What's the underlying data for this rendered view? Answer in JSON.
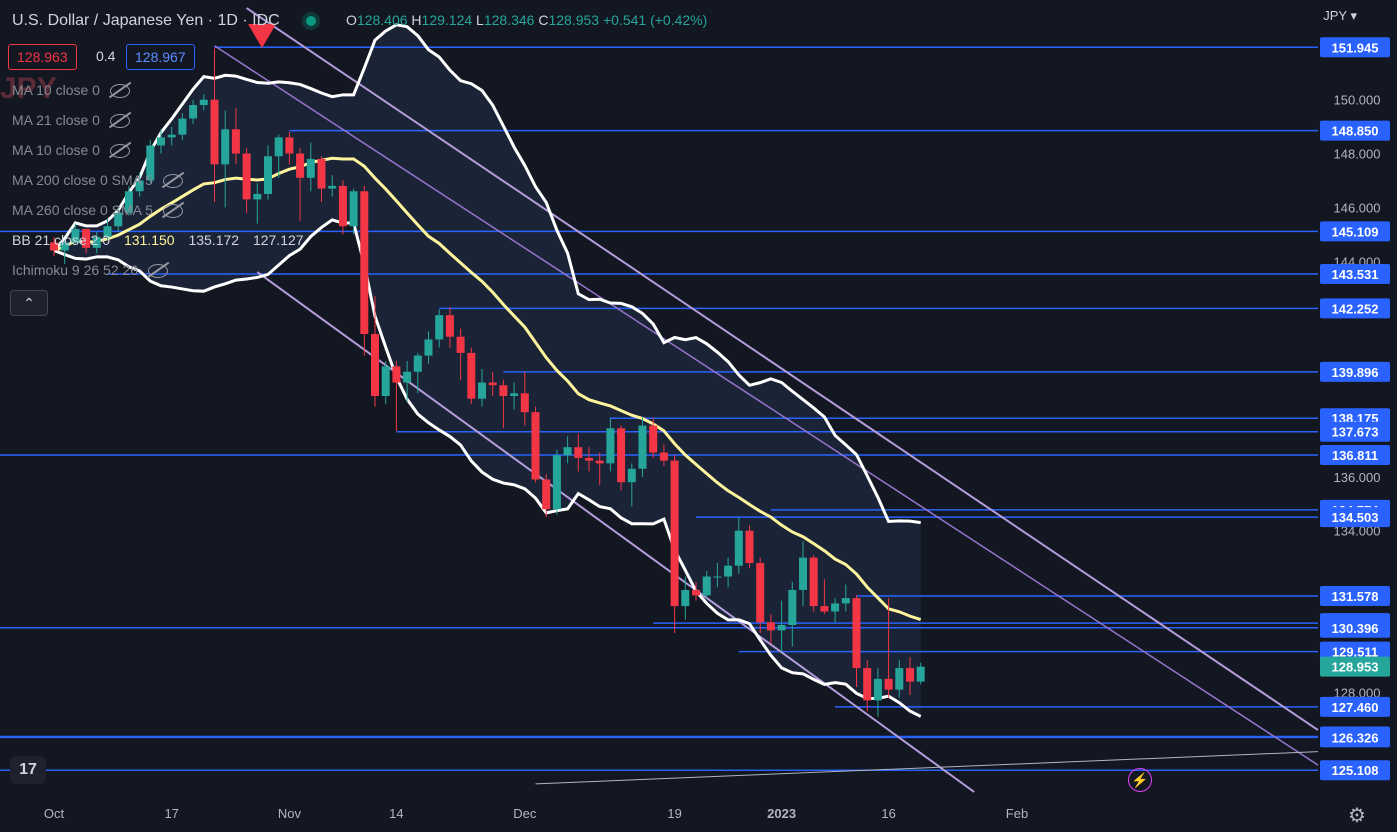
{
  "header": {
    "symbol": "U.S. Dollar / Japanese Yen · 1D · IDC",
    "ohlc": [
      {
        "k": "O",
        "v": "128.406"
      },
      {
        "k": "H",
        "v": "129.124"
      },
      {
        "k": "L",
        "v": "128.346"
      },
      {
        "k": "C",
        "v": "128.953"
      }
    ],
    "change": "+0.541 (+0.42%)"
  },
  "trade": {
    "sell": "128.963",
    "spread": "0.4",
    "buy": "128.967"
  },
  "watermark": "JPY",
  "indicators": {
    "ma1": "MA 10 close 0",
    "ma2": "MA 21 close 0",
    "ma3": "MA 10 close 0",
    "ma4": "MA 200 close 0 SMA 5",
    "ma5": "MA 260 close 0 SMA 5",
    "bb_label": "BB 21 close 2 0",
    "bb_basis": "131.150",
    "bb_upper": "135.172",
    "bb_lower": "127.127",
    "ichimoku": "Ichimoku 9 26 52 26"
  },
  "currency_label": "JPY",
  "colors": {
    "up": "#26a69a",
    "down": "#f23645",
    "hline": "#2962ff",
    "channel": "#b39ddb",
    "bb": "#ffffff",
    "ma": "#fff59d",
    "bg": "#131722"
  },
  "chart_data": {
    "type": "candlestick",
    "ylim": [
      124.3,
      153.7
    ],
    "y_ticks": [
      "150.000",
      "148.000",
      "146.000",
      "144.000",
      "136.000",
      "134.000",
      "128.000"
    ],
    "x_ticks": [
      {
        "label": "Oct",
        "i": 0
      },
      {
        "label": "17",
        "i": 11
      },
      {
        "label": "Nov",
        "i": 22
      },
      {
        "label": "14",
        "i": 32
      },
      {
        "label": "Dec",
        "i": 44
      },
      {
        "label": "19",
        "i": 58
      },
      {
        "label": "2023",
        "i": 68
      },
      {
        "label": "16",
        "i": 78
      },
      {
        "label": "Feb",
        "i": 90
      }
    ],
    "candles": [
      [
        144.7,
        144.9,
        144.2,
        144.4
      ],
      [
        144.4,
        144.8,
        143.9,
        144.7
      ],
      [
        144.7,
        145.4,
        144.6,
        145.2
      ],
      [
        145.2,
        145.0,
        144.3,
        144.5
      ],
      [
        144.5,
        145.1,
        144.3,
        144.9
      ],
      [
        144.9,
        145.6,
        144.8,
        145.3
      ],
      [
        145.3,
        146.0,
        145.1,
        145.8
      ],
      [
        145.8,
        146.8,
        145.7,
        146.6
      ],
      [
        146.6,
        147.3,
        146.4,
        147.0
      ],
      [
        147.0,
        148.5,
        146.9,
        148.3
      ],
      [
        148.3,
        148.9,
        148.0,
        148.6
      ],
      [
        148.6,
        149.0,
        148.3,
        148.7
      ],
      [
        148.7,
        149.5,
        148.5,
        149.3
      ],
      [
        149.3,
        150.0,
        149.1,
        149.8
      ],
      [
        149.8,
        150.2,
        149.6,
        150.0
      ],
      [
        150.0,
        151.9,
        146.2,
        147.6
      ],
      [
        147.6,
        149.6,
        146.0,
        148.9
      ],
      [
        148.9,
        149.7,
        147.6,
        148.0
      ],
      [
        148.0,
        148.2,
        145.8,
        146.3
      ],
      [
        146.3,
        146.9,
        145.4,
        146.5
      ],
      [
        146.5,
        148.3,
        146.3,
        147.9
      ],
      [
        147.9,
        148.7,
        147.1,
        148.6
      ],
      [
        148.6,
        148.8,
        147.6,
        148.0
      ],
      [
        148.0,
        148.2,
        145.5,
        147.1
      ],
      [
        147.1,
        148.4,
        146.6,
        147.8
      ],
      [
        147.8,
        147.9,
        146.2,
        146.7
      ],
      [
        146.7,
        147.2,
        146.4,
        146.8
      ],
      [
        146.8,
        147.0,
        145.0,
        145.3
      ],
      [
        145.3,
        146.7,
        145.0,
        146.6
      ],
      [
        146.6,
        146.8,
        140.5,
        141.3
      ],
      [
        141.3,
        142.7,
        138.6,
        139.0
      ],
      [
        139.0,
        140.3,
        138.7,
        140.1
      ],
      [
        140.1,
        140.3,
        137.7,
        139.5
      ],
      [
        139.5,
        140.3,
        138.8,
        139.9
      ],
      [
        139.9,
        140.6,
        139.1,
        140.5
      ],
      [
        140.5,
        141.4,
        140.2,
        141.1
      ],
      [
        141.1,
        142.2,
        140.8,
        142.0
      ],
      [
        142.0,
        142.3,
        140.8,
        141.2
      ],
      [
        141.2,
        141.5,
        139.6,
        140.6
      ],
      [
        140.6,
        140.8,
        138.7,
        138.9
      ],
      [
        138.9,
        140.0,
        138.6,
        139.5
      ],
      [
        139.5,
        139.9,
        139.0,
        139.4
      ],
      [
        139.4,
        139.6,
        137.8,
        139.0
      ],
      [
        139.0,
        139.5,
        138.5,
        139.1
      ],
      [
        139.1,
        139.9,
        137.9,
        138.4
      ],
      [
        138.4,
        138.6,
        135.8,
        135.9
      ],
      [
        135.9,
        136.1,
        134.5,
        134.8
      ],
      [
        134.8,
        137.0,
        134.6,
        136.8
      ],
      [
        136.8,
        137.5,
        136.5,
        137.1
      ],
      [
        137.1,
        137.6,
        136.2,
        136.7
      ],
      [
        136.7,
        137.1,
        136.2,
        136.6
      ],
      [
        136.6,
        136.9,
        135.7,
        136.5
      ],
      [
        136.5,
        138.2,
        136.2,
        137.8
      ],
      [
        137.8,
        137.9,
        135.5,
        135.8
      ],
      [
        135.8,
        136.5,
        134.9,
        136.3
      ],
      [
        136.3,
        138.2,
        136.0,
        137.9
      ],
      [
        137.9,
        138.2,
        136.7,
        136.9
      ],
      [
        136.9,
        137.2,
        136.4,
        136.6
      ],
      [
        136.6,
        136.8,
        130.2,
        131.2
      ],
      [
        131.2,
        132.3,
        130.7,
        131.8
      ],
      [
        131.8,
        132.1,
        131.4,
        131.6
      ],
      [
        131.6,
        132.5,
        131.5,
        132.3
      ],
      [
        132.3,
        132.8,
        131.9,
        132.3
      ],
      [
        132.3,
        133.0,
        131.9,
        132.7
      ],
      [
        132.7,
        134.5,
        132.4,
        134.0
      ],
      [
        134.0,
        134.2,
        132.6,
        132.8
      ],
      [
        132.8,
        133.0,
        130.2,
        130.6
      ],
      [
        130.6,
        130.9,
        129.8,
        130.3
      ],
      [
        130.3,
        131.4,
        129.5,
        130.5
      ],
      [
        130.5,
        132.1,
        129.7,
        131.8
      ],
      [
        131.8,
        133.6,
        131.2,
        133.0
      ],
      [
        133.0,
        133.1,
        131.0,
        131.2
      ],
      [
        131.2,
        132.2,
        130.9,
        131.0
      ],
      [
        131.0,
        131.5,
        130.6,
        131.3
      ],
      [
        131.3,
        132.0,
        131.0,
        131.5
      ],
      [
        131.5,
        131.6,
        128.2,
        128.9
      ],
      [
        128.9,
        129.2,
        127.3,
        127.7
      ],
      [
        127.7,
        128.9,
        127.1,
        128.5
      ],
      [
        128.5,
        131.5,
        127.8,
        128.1
      ],
      [
        128.1,
        129.2,
        127.8,
        128.9
      ],
      [
        128.9,
        129.3,
        127.9,
        128.4
      ],
      [
        128.4,
        129.1,
        128.3,
        128.95
      ]
    ],
    "price_labels": [
      {
        "label": "151.945",
        "y": 151.945,
        "x0": 15
      },
      {
        "label": "148.850",
        "y": 148.85,
        "x0": 22
      },
      {
        "label": "145.109",
        "y": 145.109,
        "x0": -99
      },
      {
        "label": "143.531",
        "y": 143.531,
        "x0": 5
      },
      {
        "label": "142.252",
        "y": 142.252,
        "x0": 36
      },
      {
        "label": "139.896",
        "y": 139.896,
        "x0": 42
      },
      {
        "label": "138.175",
        "y": 138.175,
        "x0": 52
      },
      {
        "label": "137.673",
        "y": 137.673,
        "x0": 32
      },
      {
        "label": "136.811",
        "y": 136.811,
        "x0": -99
      },
      {
        "label": "134.774",
        "y": 134.774,
        "x0": 67
      },
      {
        "label": "134.503",
        "y": 134.503,
        "x0": 60
      },
      {
        "label": "131.578",
        "y": 131.578,
        "x0": 75
      },
      {
        "label": "130.567",
        "y": 130.567,
        "x0": 56
      },
      {
        "label": "130.396",
        "y": 130.396,
        "x0": -99
      },
      {
        "label": "129.511",
        "y": 129.511,
        "x0": 64
      },
      {
        "label": "128.953",
        "y": 128.953,
        "x0": -1,
        "current": true
      },
      {
        "label": "127.460",
        "y": 127.46,
        "x0": 73
      },
      {
        "label": "126.362",
        "y": 126.362,
        "x0": -99
      },
      {
        "label": "126.326",
        "y": 126.326,
        "x0": -99
      },
      {
        "label": "125.108",
        "y": 125.108,
        "x0": -99
      }
    ]
  }
}
